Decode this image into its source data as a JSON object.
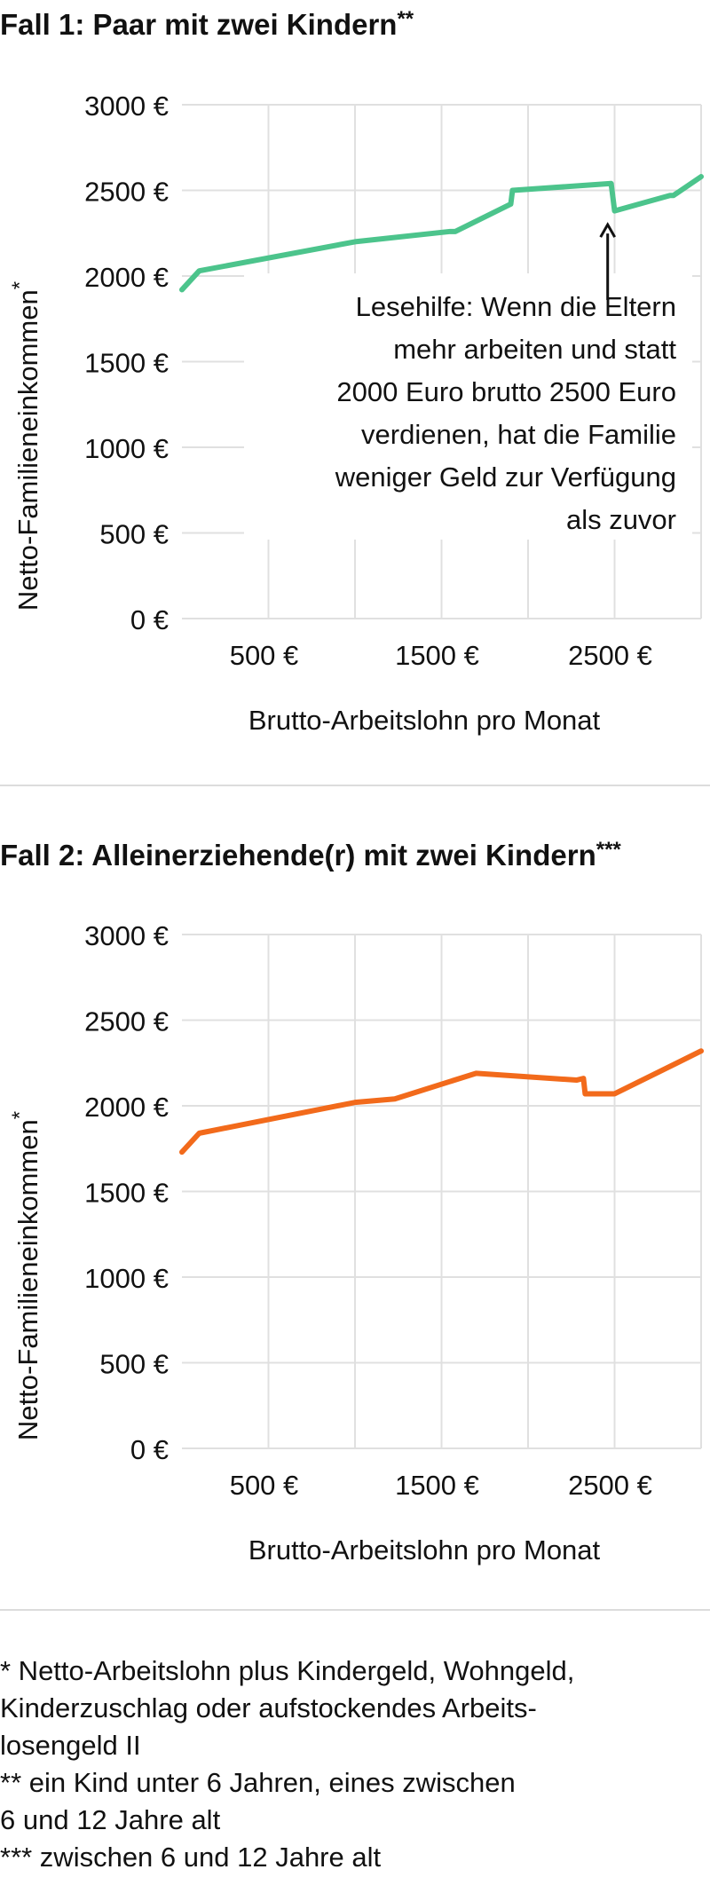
{
  "chart_data": [
    {
      "type": "line",
      "title": "Fall 1: Paar mit zwei Kindern",
      "title_mark": "**",
      "xlabel": "Brutto-Arbeitslohn pro Monat",
      "ylabel": "Netto-Familieneinkommen",
      "ylabel_mark": "*",
      "xlim": [
        0,
        3000
      ],
      "ylim": [
        0,
        3000
      ],
      "x_ticks": [
        500,
        1000,
        1500,
        2000,
        2500,
        3000
      ],
      "x_tick_labels": [
        "500 €",
        "",
        "1500 €",
        "",
        "2500 €",
        ""
      ],
      "y_ticks": [
        0,
        500,
        1000,
        1500,
        2000,
        2500,
        3000
      ],
      "y_tick_labels": [
        "0 €",
        "500 €",
        "1000 €",
        "1500 €",
        "2000 €",
        "2500 €",
        "3000 €"
      ],
      "grid": true,
      "color": "#4cc48c",
      "series": [
        {
          "x": [
            0,
            100,
            1000,
            1550,
            1580,
            1900,
            1910,
            2480,
            2500,
            2820,
            2840,
            3000
          ],
          "y": [
            1920,
            2030,
            2200,
            2260,
            2260,
            2420,
            2500,
            2540,
            2380,
            2470,
            2470,
            2580
          ]
        }
      ],
      "annotation": {
        "lines": [
          "Lesehilfe: Wenn die Eltern",
          "mehr arbeiten und statt",
          "2000 Euro brutto 2500 Euro",
          "verdienen, hat die Familie",
          "weniger Geld zur Verfügung",
          "als zuvor"
        ],
        "arrow_x": 2460,
        "arrow_from_y": 1860,
        "arrow_to_y": 2300
      }
    },
    {
      "type": "line",
      "title": "Fall 2: Alleinerziehende(r) mit zwei Kindern",
      "title_mark": "***",
      "xlabel": "Brutto-Arbeitslohn pro Monat",
      "ylabel": "Netto-Familieneinkommen",
      "ylabel_mark": "*",
      "xlim": [
        0,
        3000
      ],
      "ylim": [
        0,
        3000
      ],
      "x_ticks": [
        500,
        1000,
        1500,
        2000,
        2500,
        3000
      ],
      "x_tick_labels": [
        "500 €",
        "",
        "1500 €",
        "",
        "2500 €",
        ""
      ],
      "y_ticks": [
        0,
        500,
        1000,
        1500,
        2000,
        2500,
        3000
      ],
      "y_tick_labels": [
        "0 €",
        "500 €",
        "1000 €",
        "1500 €",
        "2000 €",
        "2500 €",
        "3000 €"
      ],
      "grid": true,
      "color": "#f26a1b",
      "series": [
        {
          "x": [
            0,
            100,
            1000,
            1230,
            1700,
            2280,
            2320,
            2330,
            2500,
            3000
          ],
          "y": [
            1730,
            1840,
            2020,
            2040,
            2190,
            2150,
            2160,
            2070,
            2070,
            2320
          ]
        }
      ]
    }
  ],
  "footnotes": [
    "* Netto-Arbeitslohn plus Kindergeld, Wohngeld, Kinderzuschlag oder aufstockendes Arbeits-",
    "losengeld II",
    "** ein Kind unter 6 Jahren, eines zwischen",
    "6 und 12 Jahre alt",
    "*** zwischen 6 und 12 Jahre alt"
  ]
}
